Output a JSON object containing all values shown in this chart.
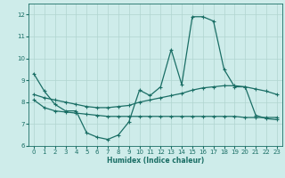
{
  "xlabel": "Humidex (Indice chaleur)",
  "bg_color": "#ceecea",
  "line_color": "#1a6e65",
  "grid_color": "#b0d4d0",
  "xlim": [
    -0.5,
    23.5
  ],
  "ylim": [
    6,
    12.5
  ],
  "yticks": [
    6,
    7,
    8,
    9,
    10,
    11,
    12
  ],
  "xticks": [
    0,
    1,
    2,
    3,
    4,
    5,
    6,
    7,
    8,
    9,
    10,
    11,
    12,
    13,
    14,
    15,
    16,
    17,
    18,
    19,
    20,
    21,
    22,
    23
  ],
  "line1_x": [
    0,
    1,
    2,
    3,
    4,
    5,
    6,
    7,
    8,
    9,
    10,
    11,
    12,
    13,
    14,
    15,
    16,
    17,
    18,
    19,
    20,
    21,
    22,
    23
  ],
  "line1_y": [
    9.3,
    8.5,
    7.9,
    7.6,
    7.6,
    6.6,
    6.4,
    6.3,
    6.5,
    7.1,
    8.55,
    8.3,
    8.7,
    10.4,
    8.8,
    11.9,
    11.9,
    11.7,
    9.5,
    8.7,
    8.7,
    7.4,
    7.25,
    7.2
  ],
  "line2_x": [
    0,
    1,
    2,
    3,
    4,
    5,
    6,
    7,
    8,
    9,
    10,
    11,
    12,
    13,
    14,
    15,
    16,
    17,
    18,
    19,
    20,
    21,
    22,
    23
  ],
  "line2_y": [
    8.35,
    8.2,
    8.1,
    8.0,
    7.9,
    7.8,
    7.75,
    7.75,
    7.8,
    7.85,
    8.0,
    8.1,
    8.2,
    8.3,
    8.4,
    8.55,
    8.65,
    8.7,
    8.75,
    8.75,
    8.7,
    8.6,
    8.5,
    8.35
  ],
  "line3_x": [
    0,
    1,
    2,
    3,
    4,
    5,
    6,
    7,
    8,
    9,
    10,
    11,
    12,
    13,
    14,
    15,
    16,
    17,
    18,
    19,
    20,
    21,
    22,
    23
  ],
  "line3_y": [
    8.1,
    7.75,
    7.6,
    7.55,
    7.5,
    7.45,
    7.4,
    7.35,
    7.35,
    7.35,
    7.35,
    7.35,
    7.35,
    7.35,
    7.35,
    7.35,
    7.35,
    7.35,
    7.35,
    7.35,
    7.3,
    7.3,
    7.3,
    7.3
  ]
}
